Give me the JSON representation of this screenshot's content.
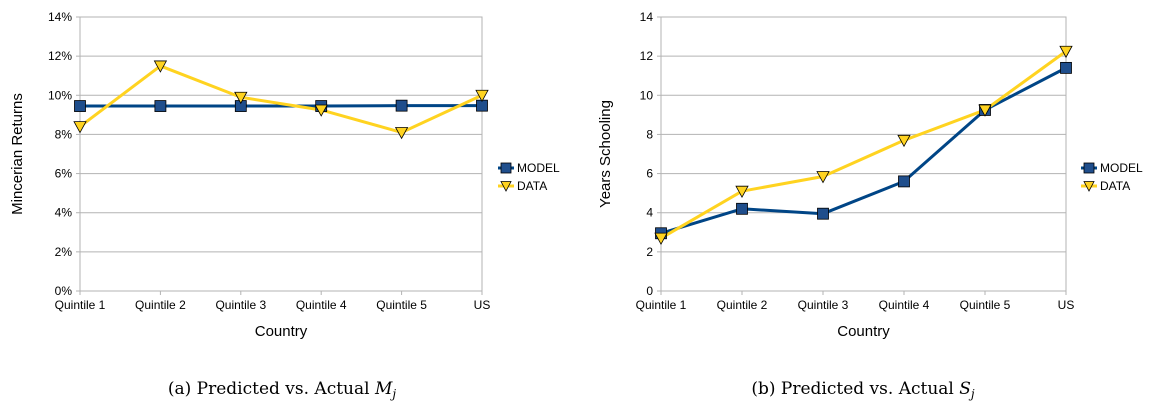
{
  "colors": {
    "model": "#004586",
    "model_marker": "#1f4e8c",
    "data": "#ffd320",
    "marker_edge": "#000000",
    "grid": "#b3b3b3"
  },
  "chart_data": [
    {
      "type": "line",
      "categories": [
        "Quintile 1",
        "Quintile 2",
        "Quintile 3",
        "Quintile 4",
        "Quintile 5",
        "US"
      ],
      "series": [
        {
          "name": "MODEL",
          "values": [
            9.45,
            9.45,
            9.45,
            9.45,
            9.47,
            9.47
          ],
          "marker": "square"
        },
        {
          "name": "DATA",
          "values": [
            8.4,
            11.5,
            9.9,
            9.25,
            8.1,
            10.0
          ],
          "marker": "triangle-down"
        }
      ],
      "xlabel": "Country",
      "ylabel": "Mincerian Returns",
      "ylim": [
        0,
        14
      ],
      "yticks": [
        0,
        2,
        4,
        6,
        8,
        10,
        12,
        14
      ],
      "ytick_labels": [
        "0%",
        "2%",
        "4%",
        "6%",
        "8%",
        "10%",
        "12%",
        "14%"
      ],
      "grid": true,
      "legend_position": "right",
      "caption_prefix": "(a) Predicted vs. Actual ",
      "caption_math": "M",
      "caption_sub": "j"
    },
    {
      "type": "line",
      "categories": [
        "Quintile 1",
        "Quintile 2",
        "Quintile 3",
        "Quintile 4",
        "Quintile 5",
        "US"
      ],
      "series": [
        {
          "name": "MODEL",
          "values": [
            2.95,
            4.2,
            3.95,
            5.6,
            9.25,
            11.4
          ],
          "marker": "square"
        },
        {
          "name": "DATA",
          "values": [
            2.7,
            5.1,
            5.85,
            7.7,
            9.25,
            12.25
          ],
          "marker": "triangle-down"
        }
      ],
      "xlabel": "Country",
      "ylabel": "Years Schooling",
      "ylim": [
        0,
        14
      ],
      "yticks": [
        0,
        2,
        4,
        6,
        8,
        10,
        12,
        14
      ],
      "ytick_labels": [
        "0",
        "2",
        "4",
        "6",
        "8",
        "10",
        "12",
        "14"
      ],
      "grid": true,
      "legend_position": "right",
      "caption_prefix": "(b) Predicted vs. Actual ",
      "caption_math": "S",
      "caption_sub": "j"
    }
  ]
}
